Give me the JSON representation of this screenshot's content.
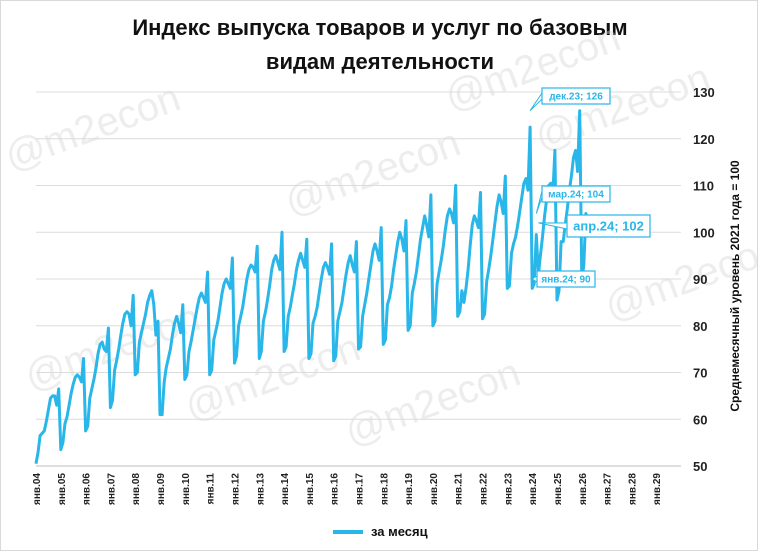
{
  "watermark": "@m2econ",
  "chart_data": {
    "type": "line",
    "title_line1": "Индекс выпуска товаров и услуг по базовым",
    "title_line2": "видам деятельности",
    "ylabel": "Среднемесячный уровень 2021 года  =  100",
    "ylim": [
      50,
      130
    ],
    "yticks": [
      50,
      60,
      70,
      80,
      90,
      100,
      110,
      120,
      130
    ],
    "xticks": [
      "янв.04",
      "янв.05",
      "янв.06",
      "янв.07",
      "янв.08",
      "янв.09",
      "янв.10",
      "янв.11",
      "янв.12",
      "янв.13",
      "янв.14",
      "янв.15",
      "янв.16",
      "янв.17",
      "янв.18",
      "янв.19",
      "янв.20",
      "янв.21",
      "янв.22",
      "янв.23",
      "янв.24",
      "янв.25",
      "янв.26",
      "янв.27",
      "янв.28",
      "янв.29"
    ],
    "grid": "horizontal",
    "legend_position": "bottom",
    "series": [
      {
        "name": "за месяц",
        "color": "#29b6e8",
        "start": "янв.04",
        "values": [
          50.5,
          53.0,
          56.5,
          57.0,
          57.5,
          59.5,
          62.0,
          64.5,
          65.0,
          65.0,
          63.0,
          66.5,
          53.5,
          55.0,
          59.0,
          60.5,
          63.0,
          65.5,
          67.5,
          69.0,
          69.5,
          69.0,
          68.0,
          73.0,
          57.5,
          58.5,
          64.5,
          66.5,
          68.5,
          71.0,
          74.0,
          76.0,
          76.5,
          75.0,
          74.5,
          79.5,
          62.5,
          64.0,
          70.5,
          72.5,
          75.0,
          78.0,
          80.5,
          82.5,
          83.0,
          82.5,
          80.0,
          86.5,
          69.5,
          70.0,
          76.5,
          78.5,
          80.5,
          82.5,
          85.0,
          86.5,
          87.5,
          84.5,
          78.0,
          81.0,
          61.0,
          61.0,
          68.0,
          71.0,
          73.0,
          75.0,
          78.0,
          80.5,
          82.0,
          80.5,
          78.5,
          84.5,
          68.5,
          69.5,
          74.5,
          76.5,
          79.0,
          81.5,
          84.0,
          86.0,
          87.0,
          86.0,
          85.0,
          91.5,
          69.5,
          70.5,
          77.0,
          79.0,
          81.0,
          84.0,
          87.0,
          89.0,
          90.0,
          89.0,
          88.0,
          94.5,
          72.0,
          73.5,
          80.0,
          82.0,
          84.0,
          87.0,
          90.0,
          92.0,
          93.0,
          92.5,
          91.5,
          97.0,
          73.0,
          74.5,
          81.0,
          83.0,
          85.5,
          88.5,
          92.0,
          94.0,
          95.0,
          93.5,
          92.0,
          100.0,
          74.5,
          75.5,
          82.0,
          84.0,
          86.5,
          89.0,
          92.0,
          94.0,
          95.5,
          94.0,
          92.5,
          98.5,
          73.0,
          74.0,
          80.5,
          82.0,
          84.0,
          87.0,
          90.0,
          92.5,
          93.5,
          92.5,
          91.0,
          97.5,
          72.5,
          73.5,
          81.0,
          83.0,
          85.0,
          88.0,
          91.0,
          93.5,
          95.0,
          93.0,
          91.5,
          98.0,
          75.0,
          75.5,
          82.0,
          84.5,
          87.0,
          90.0,
          93.0,
          96.0,
          97.5,
          96.0,
          94.0,
          101.0,
          76.0,
          77.0,
          84.5,
          86.0,
          88.5,
          92.0,
          95.0,
          98.0,
          100.0,
          98.5,
          96.0,
          102.5,
          79.0,
          80.0,
          87.0,
          89.0,
          91.5,
          95.0,
          98.5,
          101.0,
          103.5,
          101.5,
          99.0,
          108.0,
          80.0,
          81.0,
          89.0,
          91.5,
          94.0,
          97.0,
          100.5,
          103.5,
          105.0,
          104.0,
          102.0,
          110.0,
          82.0,
          83.0,
          87.5,
          85.0,
          88.0,
          92.0,
          97.0,
          101.5,
          103.5,
          102.5,
          101.0,
          108.5,
          81.5,
          82.5,
          89.5,
          92.0,
          95.0,
          98.5,
          102.0,
          105.5,
          108.0,
          106.5,
          104.0,
          112.0,
          88.0,
          88.5,
          95.5,
          97.5,
          99.0,
          101.5,
          104.5,
          107.5,
          110.5,
          111.5,
          109.0,
          122.5,
          88.0,
          89.0,
          99.5,
          91.0,
          95.0,
          99.0,
          103.5,
          107.0,
          110.0,
          110.5,
          108.0,
          117.5,
          85.5,
          87.5,
          98.0,
          98.0,
          101.5,
          105.0,
          109.0,
          112.0,
          116.0,
          117.5,
          113.0,
          126.0,
          90.0,
          93.0,
          104.0,
          102.0
        ]
      }
    ],
    "annotations": [
      {
        "text": "дек.23; 126",
        "x": "дек.23",
        "y": 126
      },
      {
        "text": "мар.24; 104",
        "x": "мар.24",
        "y": 104
      },
      {
        "text": "апр.24; 102",
        "x": "апр.24",
        "y": 102
      },
      {
        "text": "янв.24; 90",
        "x": "янв.24",
        "y": 90
      }
    ]
  }
}
